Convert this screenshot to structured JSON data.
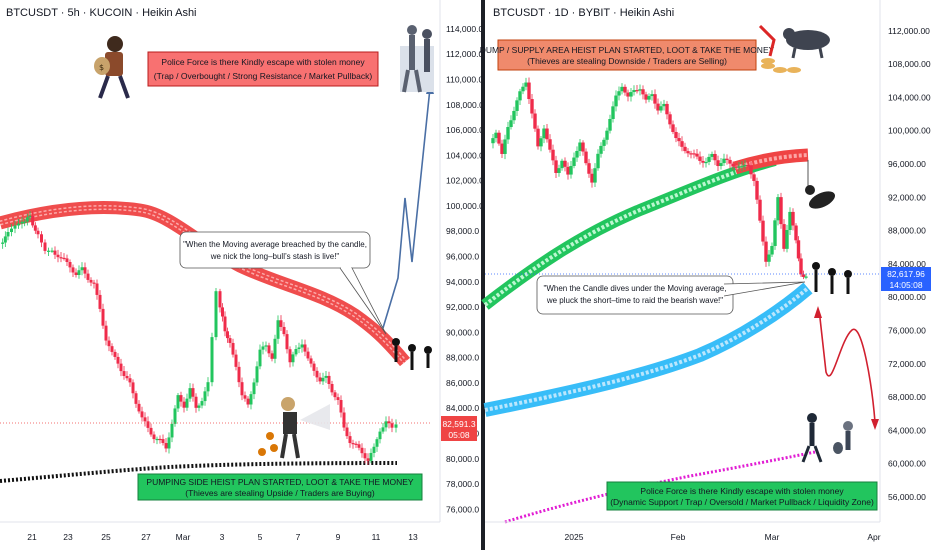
{
  "colors": {
    "up": "#26a69a",
    "up_bright": "#22c55e",
    "down": "#ef2b4a",
    "red_band": "#ef4444",
    "green_band": "#22c55e",
    "cyan_band": "#38bdf8",
    "magenta": "#e11dd3",
    "arrow_blue": "#4a6fa5",
    "arrow_red": "#d1202f",
    "red_box": "#f87171",
    "red_box_border": "#b91c1c",
    "salmon_box": "#f08a6c",
    "green_box": "#22c55e",
    "green_box_border": "#15803d",
    "price_tag_red": "#ef4444",
    "price_tag_blue": "#2962ff"
  },
  "chart_data": [
    {
      "type": "candlestick",
      "title": "BTCUSDT · 5h · KUCOIN · Heikin Ashi",
      "x_ticks": [
        "21",
        "23",
        "25",
        "27",
        "Mar",
        "3",
        "5",
        "7",
        "9",
        "11",
        "13"
      ],
      "y_ticks": [
        "76,000.0",
        "78,000.0",
        "80,000.0",
        "82,000.0",
        "84,000.0",
        "86,000.0",
        "88,000.0",
        "90,000.0",
        "92,000.0",
        "94,000.0",
        "96,000.0",
        "98,000.0",
        "100,000.0",
        "102,000.0",
        "104,000.0",
        "106,000.0",
        "108,000.0",
        "110,000.0",
        "112,000.0",
        "114,000.0"
      ],
      "ylim": [
        75000,
        115500
      ],
      "last_price": "82,591.3",
      "countdown": "05:08",
      "close_series": [
        {
          "x": 0,
          "y": 97000
        },
        {
          "x": 8,
          "y": 97800
        },
        {
          "x": 15,
          "y": 98400
        },
        {
          "x": 22,
          "y": 98800
        },
        {
          "x": 30,
          "y": 99100
        },
        {
          "x": 38,
          "y": 97600
        },
        {
          "x": 45,
          "y": 96300
        },
        {
          "x": 52,
          "y": 96400
        },
        {
          "x": 58,
          "y": 96100
        },
        {
          "x": 64,
          "y": 95700
        },
        {
          "x": 70,
          "y": 95200
        },
        {
          "x": 76,
          "y": 94600
        },
        {
          "x": 82,
          "y": 95000
        },
        {
          "x": 88,
          "y": 94300
        },
        {
          "x": 94,
          "y": 93800
        },
        {
          "x": 100,
          "y": 91800
        },
        {
          "x": 106,
          "y": 89500
        },
        {
          "x": 112,
          "y": 88300
        },
        {
          "x": 118,
          "y": 87600
        },
        {
          "x": 124,
          "y": 86600
        },
        {
          "x": 130,
          "y": 85900
        },
        {
          "x": 136,
          "y": 84500
        },
        {
          "x": 142,
          "y": 83200
        },
        {
          "x": 148,
          "y": 82400
        },
        {
          "x": 154,
          "y": 81700
        },
        {
          "x": 160,
          "y": 81400
        },
        {
          "x": 166,
          "y": 80900
        },
        {
          "x": 172,
          "y": 82800
        },
        {
          "x": 178,
          "y": 84900
        },
        {
          "x": 184,
          "y": 84200
        },
        {
          "x": 190,
          "y": 85500
        },
        {
          "x": 196,
          "y": 84000
        },
        {
          "x": 202,
          "y": 84700
        },
        {
          "x": 208,
          "y": 85900
        },
        {
          "x": 212,
          "y": 89500
        },
        {
          "x": 216,
          "y": 93200
        },
        {
          "x": 220,
          "y": 92000
        },
        {
          "x": 225,
          "y": 90200
        },
        {
          "x": 230,
          "y": 89000
        },
        {
          "x": 236,
          "y": 87400
        },
        {
          "x": 242,
          "y": 85000
        },
        {
          "x": 248,
          "y": 84200
        },
        {
          "x": 254,
          "y": 86200
        },
        {
          "x": 260,
          "y": 88500
        },
        {
          "x": 266,
          "y": 89000
        },
        {
          "x": 272,
          "y": 88000
        },
        {
          "x": 278,
          "y": 90800
        },
        {
          "x": 284,
          "y": 90000
        },
        {
          "x": 290,
          "y": 87600
        },
        {
          "x": 296,
          "y": 88600
        },
        {
          "x": 302,
          "y": 89200
        },
        {
          "x": 308,
          "y": 87800
        },
        {
          "x": 314,
          "y": 87000
        },
        {
          "x": 320,
          "y": 86200
        },
        {
          "x": 326,
          "y": 86400
        },
        {
          "x": 332,
          "y": 85400
        },
        {
          "x": 338,
          "y": 84600
        },
        {
          "x": 344,
          "y": 82400
        },
        {
          "x": 350,
          "y": 81400
        },
        {
          "x": 356,
          "y": 81000
        },
        {
          "x": 362,
          "y": 80500
        },
        {
          "x": 368,
          "y": 79900
        },
        {
          "x": 374,
          "y": 80800
        },
        {
          "x": 380,
          "y": 82300
        },
        {
          "x": 386,
          "y": 82900
        },
        {
          "x": 392,
          "y": 82400
        },
        {
          "x": 396,
          "y": 82591
        }
      ]
    },
    {
      "type": "candlestick",
      "title": "BTCUSDT · 1D · BYBIT · Heikin Ashi",
      "x_ticks": [
        "2025",
        "Feb",
        "Mar",
        "Apr"
      ],
      "y_ticks": [
        "56,000.00",
        "60,000.00",
        "64,000.00",
        "68,000.00",
        "72,000.00",
        "76,000.00",
        "80,000.00",
        "84,000.00",
        "88,000.00",
        "92,000.00",
        "96,000.00",
        "100,000.00",
        "104,000.00",
        "108,000.00",
        "112,000.00"
      ],
      "ylim": [
        53000,
        114500
      ],
      "last_price": "82,617.96",
      "countdown": "14:05:08",
      "close_series": [
        {
          "x": 490,
          "y": 98500
        },
        {
          "x": 496,
          "y": 100000
        },
        {
          "x": 502,
          "y": 97000
        },
        {
          "x": 508,
          "y": 100500
        },
        {
          "x": 514,
          "y": 102500
        },
        {
          "x": 520,
          "y": 104500
        },
        {
          "x": 526,
          "y": 106000
        },
        {
          "x": 532,
          "y": 102000
        },
        {
          "x": 538,
          "y": 98000
        },
        {
          "x": 544,
          "y": 100500
        },
        {
          "x": 550,
          "y": 97500
        },
        {
          "x": 556,
          "y": 95000
        },
        {
          "x": 562,
          "y": 96500
        },
        {
          "x": 568,
          "y": 94500
        },
        {
          "x": 574,
          "y": 97000
        },
        {
          "x": 580,
          "y": 98500
        },
        {
          "x": 586,
          "y": 96000
        },
        {
          "x": 592,
          "y": 94000
        },
        {
          "x": 598,
          "y": 97000
        },
        {
          "x": 604,
          "y": 99000
        },
        {
          "x": 610,
          "y": 101500
        },
        {
          "x": 616,
          "y": 104000
        },
        {
          "x": 622,
          "y": 105500
        },
        {
          "x": 628,
          "y": 104000
        },
        {
          "x": 634,
          "y": 104800
        },
        {
          "x": 640,
          "y": 105200
        },
        {
          "x": 646,
          "y": 103500
        },
        {
          "x": 652,
          "y": 104500
        },
        {
          "x": 658,
          "y": 102500
        },
        {
          "x": 664,
          "y": 103000
        },
        {
          "x": 670,
          "y": 101000
        },
        {
          "x": 676,
          "y": 99000
        },
        {
          "x": 682,
          "y": 98000
        },
        {
          "x": 688,
          "y": 97500
        },
        {
          "x": 694,
          "y": 97000
        },
        {
          "x": 700,
          "y": 96500
        },
        {
          "x": 706,
          "y": 96300
        },
        {
          "x": 712,
          "y": 97000
        },
        {
          "x": 718,
          "y": 96000
        },
        {
          "x": 724,
          "y": 96500
        },
        {
          "x": 730,
          "y": 96000
        },
        {
          "x": 736,
          "y": 95800
        },
        {
          "x": 742,
          "y": 95500
        },
        {
          "x": 748,
          "y": 96000
        },
        {
          "x": 754,
          "y": 94000
        },
        {
          "x": 760,
          "y": 89000
        },
        {
          "x": 766,
          "y": 84500
        },
        {
          "x": 772,
          "y": 86000
        },
        {
          "x": 778,
          "y": 92000
        },
        {
          "x": 784,
          "y": 86000
        },
        {
          "x": 790,
          "y": 90000
        },
        {
          "x": 796,
          "y": 87000
        },
        {
          "x": 801,
          "y": 82500
        },
        {
          "x": 806,
          "y": 82618
        }
      ]
    }
  ],
  "annotations": {
    "left_top_box": [
      "Police Force is there Kindly escape with stolen money",
      "(Trap / Overbought / Strong Resistance / Market Pullback)"
    ],
    "left_bubble": [
      "\"When the Moving average breached by the candle,",
      "we nick the long–bull’s stash is live!\""
    ],
    "left_bottom_box": [
      "PUMPING SIDE HEIST PLAN STARTED, LOOT & TAKE THE MONEY",
      "(Thieves are stealing Upside / Traders are Buying)"
    ],
    "right_top_box": [
      "DUMP / SUPPLY AREA HEIST PLAN STARTED, LOOT & TAKE THE MONEY",
      "(Thieves are stealing Downside / Traders are Selling)"
    ],
    "right_bubble": [
      "\"When the Candle dives under the Moving average,",
      "we pluck the short–time to raid the bearish wave!\""
    ],
    "right_bottom_box": [
      "Police Force is there Kindly escape with stolen money",
      "(Dynamic Support / Trap / Oversold / Market Pullback / Liquidity Zone)"
    ]
  }
}
